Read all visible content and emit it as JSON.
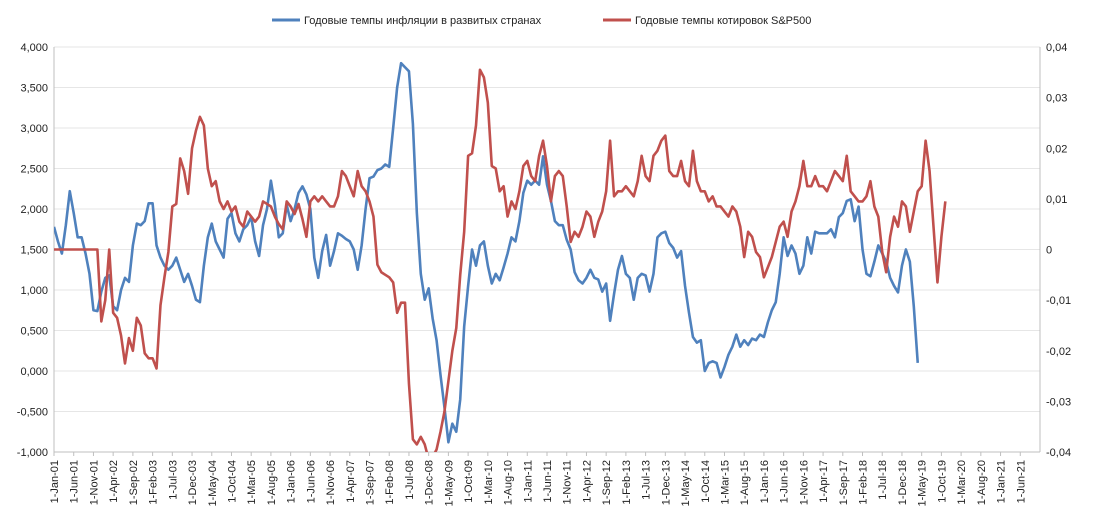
{
  "chart_data": {
    "type": "line",
    "title": "",
    "legend": {
      "position": "top-center",
      "entries": [
        {
          "name": "Годовые темпы инфляции в развитых странах",
          "color": "#4f81bd"
        },
        {
          "name": "Годовые темпы котировок S&P500",
          "color": "#c0504d"
        }
      ]
    },
    "y_left": {
      "min": -1.0,
      "max": 4.0,
      "ticks": [
        "-1,000",
        "-0,500",
        "0,000",
        "0,500",
        "1,000",
        "1,500",
        "2,000",
        "2,500",
        "3,000",
        "3,500",
        "4,000"
      ],
      "tick_values": [
        -1.0,
        -0.5,
        0.0,
        0.5,
        1.0,
        1.5,
        2.0,
        2.5,
        3.0,
        3.5,
        4.0
      ]
    },
    "y_right": {
      "min": -0.04,
      "max": 0.04,
      "ticks": [
        "-0,04",
        "-0,03",
        "-0,02",
        "-0,01",
        "0",
        "0,01",
        "0,02",
        "0,03",
        "0,04"
      ],
      "tick_values": [
        -0.04,
        -0.03,
        -0.02,
        -0.01,
        0,
        0.01,
        0.02,
        0.03,
        0.04
      ]
    },
    "x_axis": {
      "start_year": 2001,
      "start_month": 1,
      "end_year": 2021,
      "end_month": 11,
      "tick_labels": [
        "1-Jan-01",
        "1-Jun-01",
        "1-Nov-01",
        "1-Apr-02",
        "1-Sep-02",
        "1-Feb-03",
        "1-Jul-03",
        "1-Dec-03",
        "1-May-04",
        "1-Oct-04",
        "1-Mar-05",
        "1-Aug-05",
        "1-Jan-06",
        "1-Jun-06",
        "1-Nov-06",
        "1-Apr-07",
        "1-Sep-07",
        "1-Feb-08",
        "1-Jul-08",
        "1-Dec-08",
        "1-May-09",
        "1-Oct-09",
        "1-Mar-10",
        "1-Aug-10",
        "1-Jan-11",
        "1-Jun-11",
        "1-Nov-11",
        "1-Apr-12",
        "1-Sep-12",
        "1-Feb-13",
        "1-Jul-13",
        "1-Dec-13",
        "1-May-14",
        "1-Oct-14",
        "1-Mar-15",
        "1-Aug-15",
        "1-Jan-16",
        "1-Jun-16",
        "1-Nov-16",
        "1-Apr-17",
        "1-Sep-17",
        "1-Feb-18",
        "1-Jul-18",
        "1-Dec-18",
        "1-May-19",
        "1-Oct-19",
        "1-Mar-20",
        "1-Aug-20",
        "1-Jan-21",
        "1-Jun-21"
      ]
    },
    "series": [
      {
        "name": "Годовые темпы инфляции в развитых странах",
        "axis": "left",
        "color": "#4f81bd",
        "start_index": 0,
        "values": [
          1.78,
          1.6,
          1.45,
          1.8,
          2.22,
          1.95,
          1.65,
          1.65,
          1.45,
          1.2,
          0.75,
          0.74,
          0.98,
          1.15,
          1.18,
          0.8,
          0.75,
          1.0,
          1.15,
          1.1,
          1.55,
          1.82,
          1.8,
          1.85,
          2.07,
          2.07,
          1.55,
          1.4,
          1.3,
          1.25,
          1.3,
          1.4,
          1.25,
          1.1,
          1.2,
          1.05,
          0.88,
          0.85,
          1.3,
          1.65,
          1.82,
          1.6,
          1.5,
          1.4,
          1.88,
          1.95,
          1.7,
          1.6,
          1.75,
          1.8,
          1.9,
          1.6,
          1.42,
          1.8,
          2.0,
          2.35,
          2.05,
          1.65,
          1.7,
          2.05,
          1.85,
          2.0,
          2.2,
          2.28,
          2.18,
          2.0,
          1.4,
          1.15,
          1.48,
          1.68,
          1.3,
          1.48,
          1.7,
          1.67,
          1.63,
          1.6,
          1.5,
          1.25,
          1.55,
          2.0,
          2.38,
          2.4,
          2.48,
          2.5,
          2.55,
          2.52,
          3.0,
          3.5,
          3.8,
          3.75,
          3.7,
          3.05,
          1.95,
          1.2,
          0.88,
          1.02,
          0.65,
          0.38,
          -0.05,
          -0.45,
          -0.88,
          -0.65,
          -0.75,
          -0.35,
          0.55,
          1.05,
          1.5,
          1.3,
          1.55,
          1.6,
          1.3,
          1.08,
          1.2,
          1.12,
          1.28,
          1.45,
          1.65,
          1.6,
          1.85,
          2.2,
          2.35,
          2.3,
          2.35,
          2.3,
          2.65,
          2.3,
          2.1,
          1.85,
          1.8,
          1.8,
          1.62,
          1.5,
          1.22,
          1.12,
          1.08,
          1.15,
          1.25,
          1.15,
          1.13,
          0.98,
          1.08,
          0.62,
          0.95,
          1.25,
          1.42,
          1.2,
          1.15,
          0.88,
          1.15,
          1.2,
          1.18,
          0.98,
          1.2,
          1.65,
          1.7,
          1.72,
          1.58,
          1.52,
          1.4,
          1.48,
          1.05,
          0.72,
          0.42,
          0.35,
          0.38,
          0.0,
          0.1,
          0.12,
          0.1,
          -0.08,
          0.05,
          0.2,
          0.3,
          0.45,
          0.3,
          0.38,
          0.32,
          0.4,
          0.38,
          0.45,
          0.42,
          0.6,
          0.75,
          0.85,
          1.2,
          1.65,
          1.42,
          1.55,
          1.45,
          1.2,
          1.3,
          1.65,
          1.45,
          1.72,
          1.7,
          1.7,
          1.7,
          1.75,
          1.65,
          1.9,
          1.95,
          2.1,
          2.12,
          1.85,
          2.03,
          1.5,
          1.2,
          1.17,
          1.35,
          1.55,
          1.45,
          1.35,
          1.15,
          1.05,
          0.97,
          1.3,
          1.5,
          1.35,
          0.8,
          0.1
        ]
      },
      {
        "name": "Годовые темпы котировок S&P500",
        "axis": "right",
        "color": "#c0504d",
        "start_index": 0,
        "values": [
          0,
          0,
          0,
          0,
          0,
          0,
          0,
          0,
          0,
          0,
          0,
          0,
          -0.0142,
          -0.01,
          0,
          -0.0125,
          -0.0135,
          -0.017,
          -0.0225,
          -0.0175,
          -0.02,
          -0.0135,
          -0.015,
          -0.0205,
          -0.0215,
          -0.0215,
          -0.0235,
          -0.011,
          -0.0055,
          -0.0005,
          0.0085,
          0.009,
          0.018,
          0.0155,
          0.011,
          0.02,
          0.0235,
          0.0262,
          0.0245,
          0.016,
          0.0125,
          0.0135,
          0.0095,
          0.008,
          0.0095,
          0.0075,
          0.0085,
          0.0055,
          0.0045,
          0.0075,
          0.0065,
          0.0055,
          0.0065,
          0.0095,
          0.009,
          0.0085,
          0.0065,
          0.005,
          0.004,
          0.0095,
          0.0085,
          0.007,
          0.009,
          0.006,
          0.0025,
          0.0095,
          0.0105,
          0.0095,
          0.0105,
          0.0095,
          0.0085,
          0.0085,
          0.0105,
          0.0155,
          0.0145,
          0.0125,
          0.0105,
          0.0155,
          0.0125,
          0.0115,
          0.0095,
          0.0065,
          -0.003,
          -0.0045,
          -0.005,
          -0.0055,
          -0.0065,
          -0.0125,
          -0.0105,
          -0.0105,
          -0.0265,
          -0.0375,
          -0.0385,
          -0.037,
          -0.0385,
          -0.0415,
          -0.041,
          -0.0395,
          -0.036,
          -0.032,
          -0.026,
          -0.02,
          -0.0155,
          -0.005,
          0.0035,
          0.0185,
          0.019,
          0.0245,
          0.0355,
          0.034,
          0.029,
          0.0165,
          0.016,
          0.0115,
          0.0125,
          0.0065,
          0.0095,
          0.008,
          0.0115,
          0.0165,
          0.0175,
          0.0145,
          0.0135,
          0.0185,
          0.0215,
          0.0165,
          0.0095,
          0.0145,
          0.0155,
          0.0145,
          0.0085,
          0.0015,
          0.0035,
          0.0025,
          0.0045,
          0.0075,
          0.0065,
          0.0025,
          0.0055,
          0.0075,
          0.0115,
          0.0215,
          0.0105,
          0.0115,
          0.0115,
          0.0125,
          0.0115,
          0.0105,
          0.0135,
          0.0185,
          0.0145,
          0.0135,
          0.0185,
          0.0195,
          0.0215,
          0.0225,
          0.0155,
          0.0145,
          0.0145,
          0.0175,
          0.0135,
          0.0125,
          0.0195,
          0.0135,
          0.0115,
          0.0115,
          0.0095,
          0.0105,
          0.0085,
          0.0085,
          0.0075,
          0.0065,
          0.0085,
          0.0075,
          0.0045,
          -0.0015,
          0.0035,
          0.0025,
          -0.0005,
          -0.0015,
          -0.0055,
          -0.0035,
          -0.0015,
          0.0015,
          0.0045,
          0.0055,
          0.0025,
          0.0075,
          0.0095,
          0.0125,
          0.0175,
          0.0125,
          0.0125,
          0.0145,
          0.0125,
          0.0125,
          0.0115,
          0.0135,
          0.0155,
          0.0145,
          0.0135,
          0.0185,
          0.0115,
          0.0105,
          0.0095,
          0.0095,
          0.0105,
          0.0135,
          0.0085,
          0.0065,
          -0.0005,
          -0.0045,
          0.0025,
          0.0065,
          0.0045,
          0.0095,
          0.0085,
          0.0035,
          0.0075,
          0.0115,
          0.0125,
          0.0215,
          0.0155,
          0.0045,
          -0.0065,
          0.0025,
          0.0095
        ]
      }
    ]
  }
}
